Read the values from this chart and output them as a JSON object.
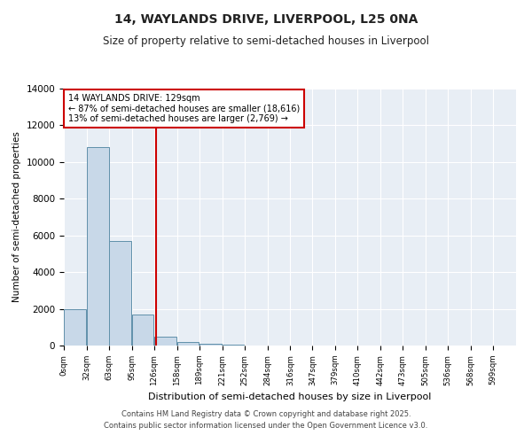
{
  "title": "14, WAYLANDS DRIVE, LIVERPOOL, L25 0NA",
  "subtitle": "Size of property relative to semi-detached houses in Liverpool",
  "xlabel": "Distribution of semi-detached houses by size in Liverpool",
  "ylabel": "Number of semi-detached properties",
  "property_size": 129,
  "pct_smaller": 87,
  "count_smaller": "18,616",
  "pct_larger": 13,
  "count_larger": "2,769",
  "bin_edges": [
    0,
    32,
    63,
    95,
    126,
    158,
    189,
    221,
    252,
    284,
    316,
    347,
    379,
    410,
    442,
    473,
    505,
    536,
    568,
    599,
    631
  ],
  "bar_heights": [
    2000,
    10800,
    5700,
    1700,
    500,
    200,
    100,
    60,
    0,
    0,
    0,
    0,
    0,
    0,
    0,
    0,
    0,
    0,
    0,
    0
  ],
  "bar_color": "#c8d8e8",
  "bar_edge_color": "#6090aa",
  "red_line_x": 129,
  "background_color": "#e8eef5",
  "ylim": [
    0,
    14000
  ],
  "yticks": [
    0,
    2000,
    4000,
    6000,
    8000,
    10000,
    12000,
    14000
  ],
  "annotation_line1": "14 WAYLANDS DRIVE: 129sqm",
  "annotation_line2": "← 87% of semi-detached houses are smaller (18,616)",
  "annotation_line3": "13% of semi-detached houses are larger (2,769) →",
  "footer_line1": "Contains HM Land Registry data © Crown copyright and database right 2025.",
  "footer_line2": "Contains public sector information licensed under the Open Government Licence v3.0."
}
